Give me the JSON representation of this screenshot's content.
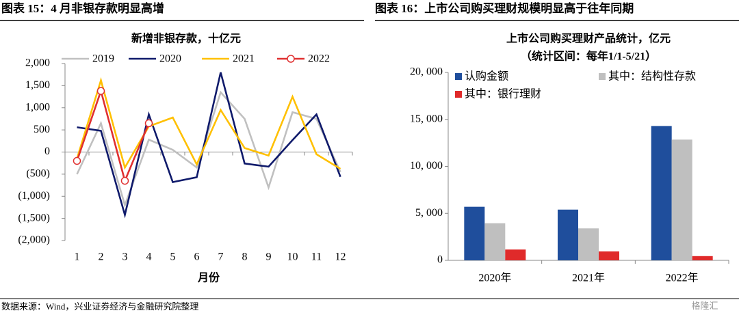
{
  "headers": [
    "图表 15：4 月非银存款明显高增",
    "图表 16：上市公司购买理财规模明显高于往年同期"
  ],
  "source": "数据来源：Wind，兴业证券经济与金融研究院整理",
  "watermark": "格隆汇",
  "chart_data": [
    {
      "type": "line",
      "title": "新增非银存款，十亿元",
      "x_label": "月份",
      "categories": [
        "1",
        "2",
        "3",
        "4",
        "5",
        "6",
        "7",
        "8",
        "9",
        "10",
        "11",
        "12"
      ],
      "series": [
        {
          "name": "2019",
          "color": "#c0c0c0",
          "values": [
            -500,
            650,
            -1200,
            280,
            50,
            -350,
            1350,
            750,
            -800,
            900,
            750,
            -450
          ]
        },
        {
          "name": "2020",
          "color": "#0f1a6b",
          "values": [
            560,
            480,
            -1420,
            850,
            -680,
            -570,
            1800,
            -260,
            -330,
            270,
            850,
            -560
          ]
        },
        {
          "name": "2021",
          "color": "#ffc000",
          "values": [
            -150,
            1620,
            -350,
            580,
            780,
            -280,
            950,
            90,
            -80,
            1250,
            -50,
            -380
          ]
        },
        {
          "name": "2022",
          "color": "#e03030",
          "markers": true,
          "values": [
            -200,
            1380,
            -650,
            650,
            null,
            null,
            null,
            null,
            null,
            null,
            null,
            null
          ]
        }
      ],
      "ylim": [
        -2000,
        2000
      ],
      "yticks": [
        {
          "value": 2000,
          "label": "2,000"
        },
        {
          "value": 1500,
          "label": "1,500"
        },
        {
          "value": 1000,
          "label": "1,000"
        },
        500,
        0,
        {
          "value": -500,
          "label": "(500)"
        },
        {
          "value": -1000,
          "label": "(1,000)"
        },
        {
          "value": -1500,
          "label": "(1,500)"
        },
        {
          "value": -2000,
          "label": "(2,000)"
        }
      ]
    },
    {
      "type": "bar",
      "title": "上市公司购买理财产品统计，亿元",
      "subtitle": "（统计区间：每年1/1-5/21）",
      "categories": [
        "2020年",
        "2021年",
        "2022年"
      ],
      "series": [
        {
          "name": "认购金额",
          "color": "#1f4e9c",
          "values": [
            5700,
            5400,
            14300
          ]
        },
        {
          "name": "其中：结构性存款",
          "color": "#bfbfbf",
          "values": [
            3950,
            3400,
            12850
          ]
        },
        {
          "name": "其中：银行理财",
          "color": "#e02a2a",
          "values": [
            1150,
            950,
            450
          ]
        }
      ],
      "ylim": [
        0,
        20000
      ],
      "yticks": [
        0,
        {
          "value": 5000,
          "label": "5, 000"
        },
        {
          "value": 10000,
          "label": "10, 000"
        },
        {
          "value": 15000,
          "label": "15, 000"
        },
        {
          "value": 20000,
          "label": "20, 000"
        }
      ]
    }
  ]
}
